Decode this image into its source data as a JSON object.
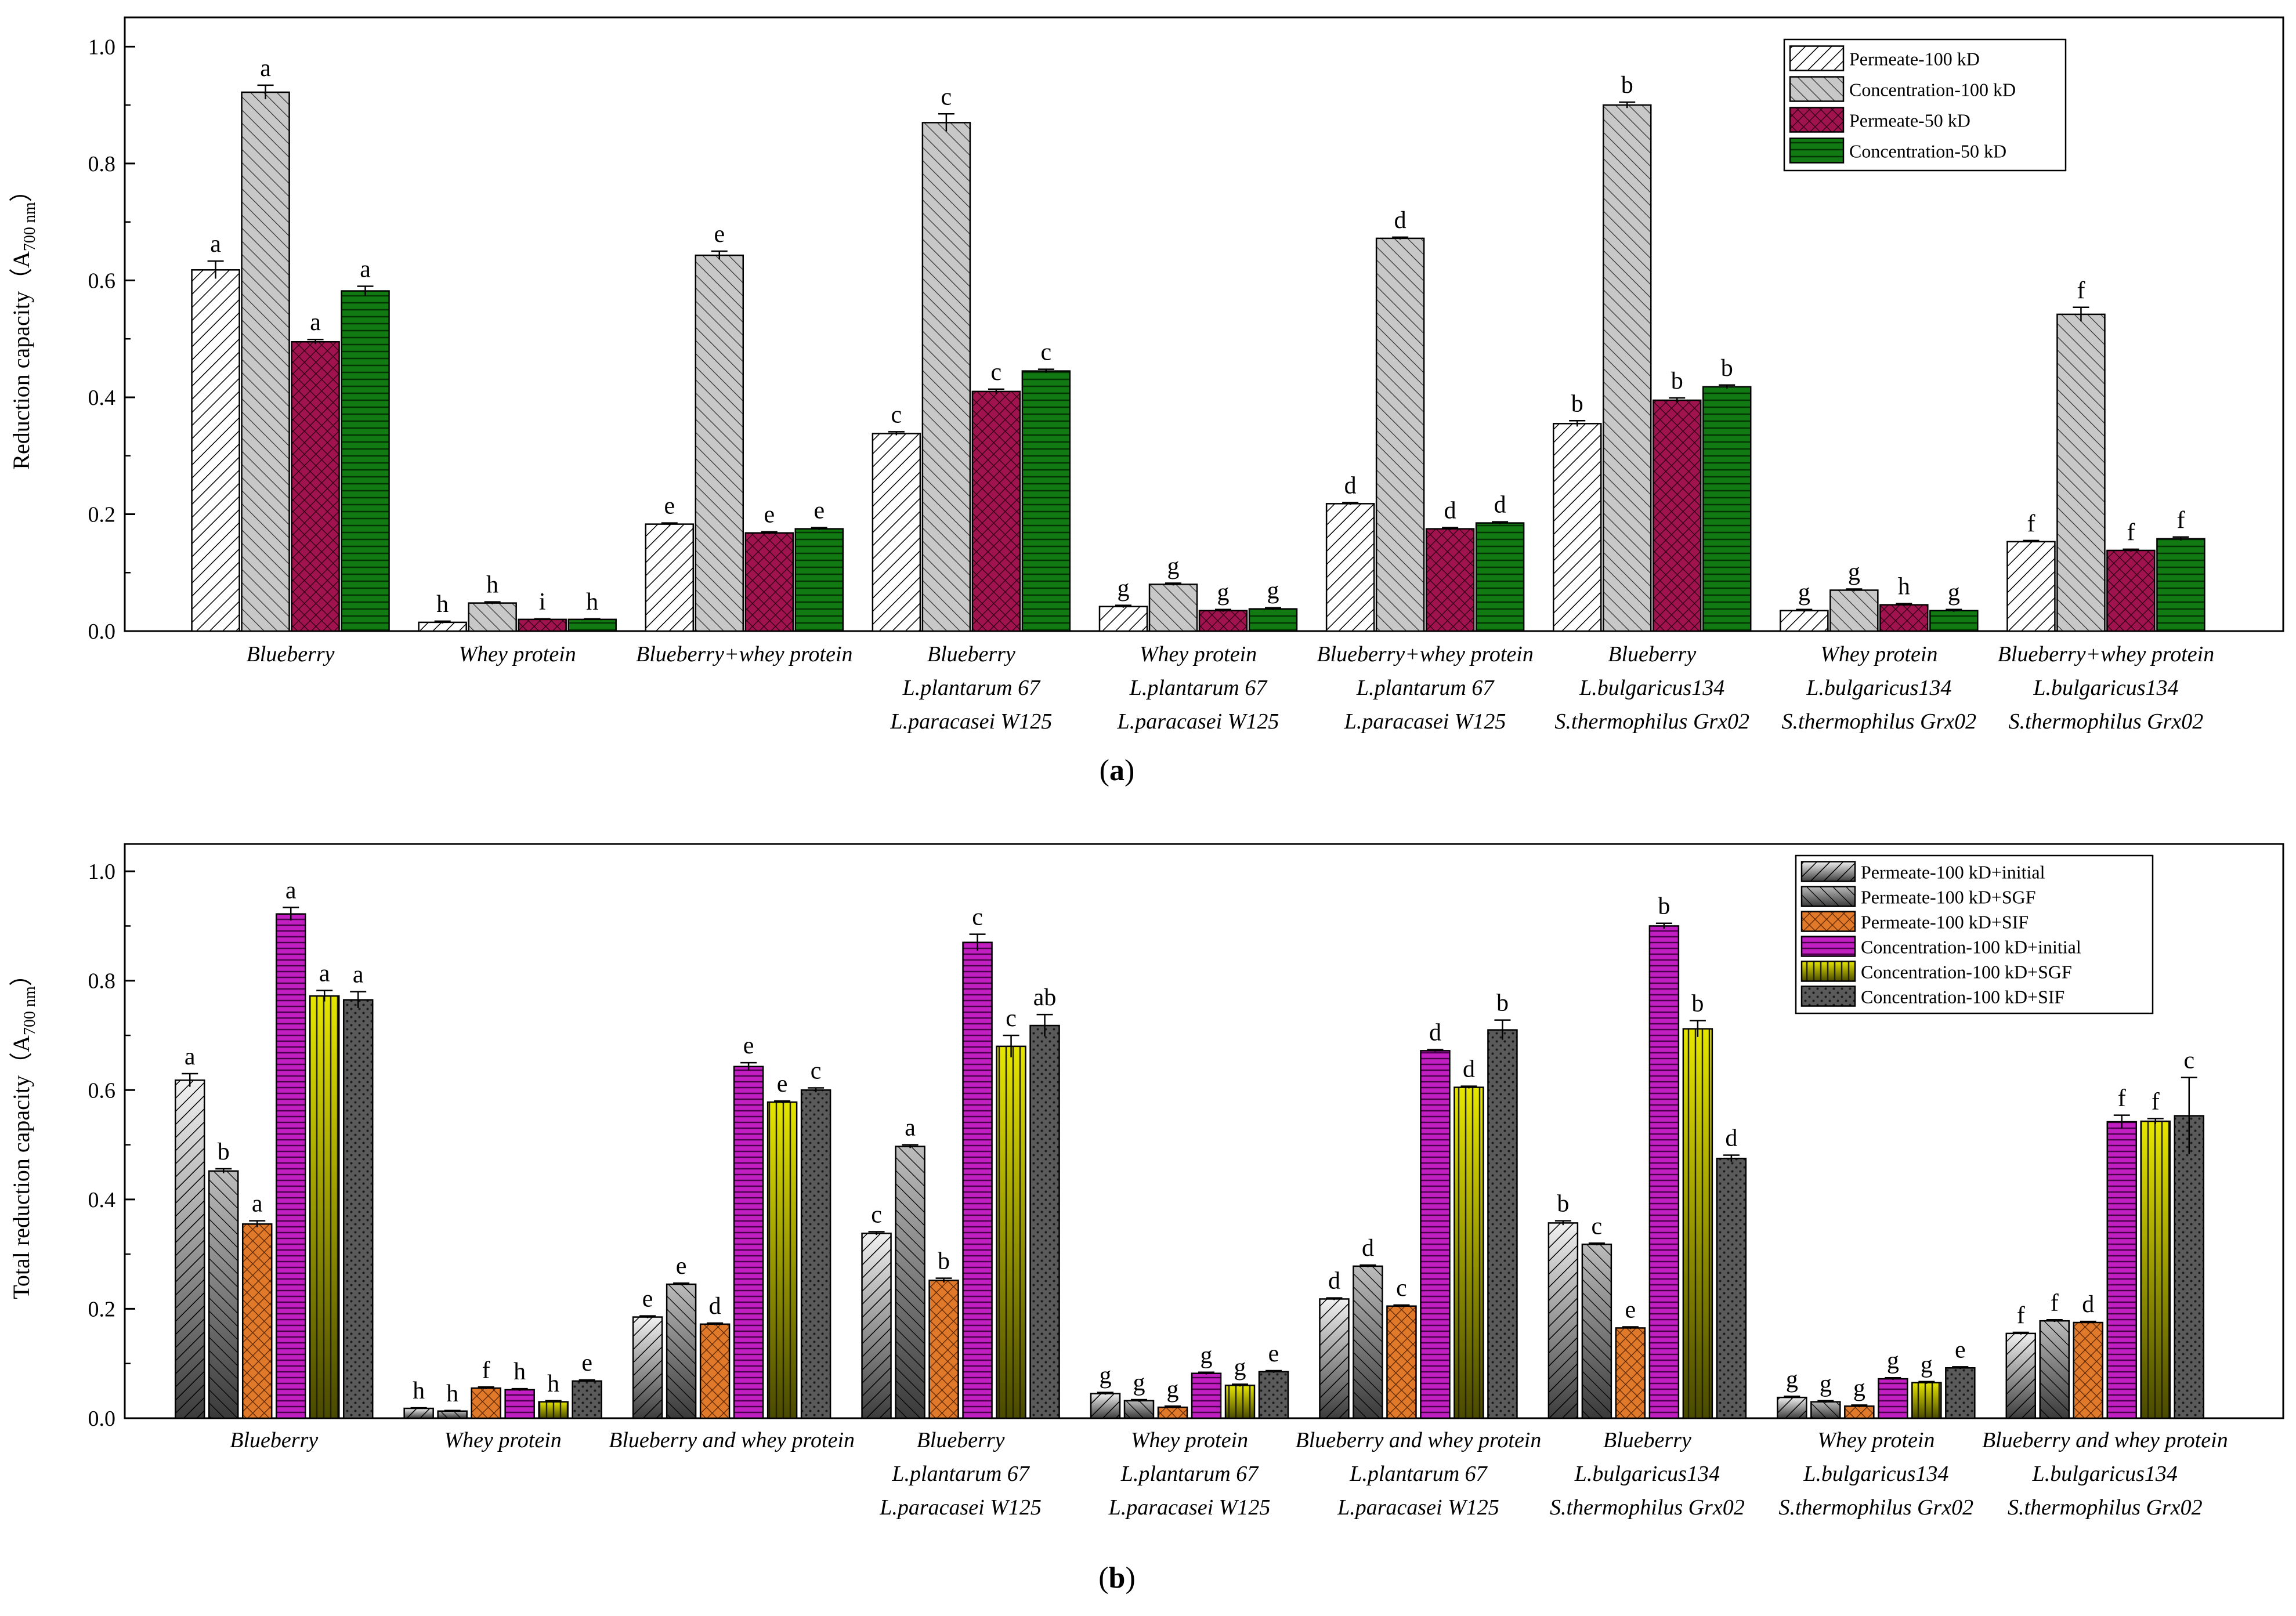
{
  "chart_data": [
    {
      "type": "bar",
      "panel_label": "a",
      "ylabel": "Reduction capacity（A",
      "ylabel_sub": "700 nm",
      "ylabel_close": "）",
      "ylim": [
        0,
        1.05
      ],
      "yticks": [
        "0.0",
        "0.2",
        "0.4",
        "0.6",
        "0.8",
        "1.0"
      ],
      "legend_position": "top-right",
      "categories": [
        [
          "Blueberry"
        ],
        [
          "Whey protein"
        ],
        [
          "Blueberry+whey protein"
        ],
        [
          "Blueberry",
          "L.plantarum 67",
          "L.paracasei W125"
        ],
        [
          "Whey protein",
          "L.plantarum 67",
          "L.paracasei W125"
        ],
        [
          "Blueberry+whey protein",
          "L.plantarum 67",
          "L.paracasei W125"
        ],
        [
          "Blueberry",
          "L.bulgaricus134",
          "S.thermophilus Grx02"
        ],
        [
          "Whey protein",
          "L.bulgaricus134",
          "S.thermophilus Grx02"
        ],
        [
          "Blueberry+whey protein",
          "L.bulgaricus134",
          "S.thermophilus Grx02"
        ]
      ],
      "series": [
        {
          "name": "Permeate-100 kD",
          "fill": "diag",
          "color": "#ffffff",
          "values": [
            0.618,
            0.015,
            0.183,
            0.338,
            0.042,
            0.218,
            0.355,
            0.035,
            0.153
          ],
          "errors": [
            0.015,
            0.002,
            0.002,
            0.003,
            0.002,
            0.002,
            0.005,
            0.002,
            0.002
          ],
          "letters": [
            "a",
            "h",
            "e",
            "c",
            "g",
            "d",
            "b",
            "g",
            "f"
          ]
        },
        {
          "name": "Concentration-100 kD",
          "fill": "diaggray",
          "color": "#c8c8c8",
          "values": [
            0.922,
            0.048,
            0.643,
            0.87,
            0.08,
            0.672,
            0.9,
            0.07,
            0.542
          ],
          "errors": [
            0.012,
            0.002,
            0.007,
            0.015,
            0.002,
            0.002,
            0.005,
            0.002,
            0.012
          ],
          "letters": [
            "a",
            "h",
            "e",
            "c",
            "g",
            "d",
            "b",
            "g",
            "f"
          ]
        },
        {
          "name": "Permeate-50 kD",
          "fill": "cross",
          "color": "#a0134e",
          "values": [
            0.495,
            0.02,
            0.168,
            0.41,
            0.035,
            0.175,
            0.395,
            0.045,
            0.138
          ],
          "errors": [
            0.004,
            0.001,
            0.002,
            0.004,
            0.002,
            0.002,
            0.004,
            0.002,
            0.002
          ],
          "letters": [
            "a",
            "i",
            "e",
            "c",
            "g",
            "d",
            "b",
            "h",
            "f"
          ]
        },
        {
          "name": "Concentration-50 kD",
          "fill": "hline",
          "color": "#127a12",
          "values": [
            0.582,
            0.02,
            0.175,
            0.445,
            0.038,
            0.185,
            0.418,
            0.035,
            0.158
          ],
          "errors": [
            0.008,
            0.001,
            0.002,
            0.003,
            0.002,
            0.002,
            0.003,
            0.002,
            0.003
          ],
          "letters": [
            "a",
            "h",
            "e",
            "c",
            "g",
            "d",
            "b",
            "g",
            "f"
          ]
        }
      ]
    },
    {
      "type": "bar",
      "panel_label": "b",
      "ylabel": "Total reduction capacity（A",
      "ylabel_sub": "700 nm",
      "ylabel_close": "）",
      "ylim": [
        0,
        1.05
      ],
      "yticks": [
        "0.0",
        "0.2",
        "0.4",
        "0.6",
        "0.8",
        "1.0"
      ],
      "legend_position": "top-right",
      "categories": [
        [
          "Blueberry"
        ],
        [
          "Whey protein"
        ],
        [
          "Blueberry and whey protein"
        ],
        [
          "Blueberry",
          "L.plantarum 67",
          "L.paracasei W125"
        ],
        [
          "Whey protein",
          "L.plantarum 67",
          "L.paracasei W125"
        ],
        [
          "Blueberry and whey protein",
          "L.plantarum 67",
          "L.paracasei W125"
        ],
        [
          "Blueberry",
          "L.bulgaricus134",
          "S.thermophilus Grx02"
        ],
        [
          "Whey protein",
          "L.bulgaricus134",
          "S.thermophilus Grx02"
        ],
        [
          "Blueberry and whey protein",
          "L.bulgaricus134",
          "S.thermophilus Grx02"
        ]
      ],
      "series": [
        {
          "name": "Permeate-100 kD+initial",
          "fill": "grad-diag",
          "color": "#9a9a9a",
          "values": [
            0.618,
            0.018,
            0.185,
            0.338,
            0.045,
            0.218,
            0.357,
            0.038,
            0.155
          ],
          "errors": [
            0.012,
            0.001,
            0.002,
            0.003,
            0.002,
            0.002,
            0.004,
            0.002,
            0.002
          ],
          "letters": [
            "a",
            "h",
            "e",
            "c",
            "g",
            "d",
            "b",
            "g",
            "f"
          ]
        },
        {
          "name": "Permeate-100 kD+SGF",
          "fill": "grad-diag2",
          "color": "#7a7a7a",
          "values": [
            0.452,
            0.013,
            0.245,
            0.497,
            0.032,
            0.278,
            0.318,
            0.03,
            0.178
          ],
          "errors": [
            0.004,
            0.001,
            0.002,
            0.003,
            0.002,
            0.002,
            0.002,
            0.002,
            0.002
          ],
          "letters": [
            "b",
            "h",
            "e",
            "a",
            "g",
            "d",
            "c",
            "g",
            "f"
          ]
        },
        {
          "name": "Permeate-100 kD+SIF",
          "fill": "cross-orange",
          "color": "#e07a2a",
          "values": [
            0.355,
            0.055,
            0.172,
            0.252,
            0.02,
            0.205,
            0.165,
            0.022,
            0.175
          ],
          "errors": [
            0.006,
            0.002,
            0.002,
            0.004,
            0.002,
            0.002,
            0.002,
            0.002,
            0.002
          ],
          "letters": [
            "a",
            "f",
            "d",
            "b",
            "g",
            "c",
            "e",
            "g",
            "d"
          ]
        },
        {
          "name": "Concentration-100 kD+initial",
          "fill": "hline-magenta",
          "color": "#b512b5",
          "values": [
            0.922,
            0.052,
            0.643,
            0.87,
            0.082,
            0.672,
            0.9,
            0.072,
            0.542
          ],
          "errors": [
            0.012,
            0.002,
            0.007,
            0.015,
            0.002,
            0.002,
            0.005,
            0.002,
            0.012
          ],
          "letters": [
            "a",
            "h",
            "e",
            "c",
            "g",
            "d",
            "b",
            "g",
            "f"
          ]
        },
        {
          "name": "Concentration-100 kD+SGF",
          "fill": "vline-olive",
          "color": "#a8a818",
          "values": [
            0.772,
            0.03,
            0.578,
            0.68,
            0.06,
            0.605,
            0.712,
            0.065,
            0.543
          ],
          "errors": [
            0.01,
            0.002,
            0.002,
            0.02,
            0.002,
            0.002,
            0.015,
            0.002,
            0.005
          ],
          "letters": [
            "a",
            "h",
            "e",
            "c",
            "g",
            "d",
            "b",
            "g",
            "f"
          ]
        },
        {
          "name": "Concentration-100 kD+SIF",
          "fill": "dots",
          "color": "#5a5a5a",
          "values": [
            0.765,
            0.068,
            0.6,
            0.718,
            0.085,
            0.71,
            0.475,
            0.092,
            0.553
          ],
          "errors": [
            0.015,
            0.002,
            0.004,
            0.02,
            0.002,
            0.018,
            0.006,
            0.002,
            0.07
          ],
          "letters": [
            "a",
            "e",
            "c",
            "ab",
            "e",
            "b",
            "d",
            "e",
            "c"
          ]
        }
      ]
    }
  ]
}
